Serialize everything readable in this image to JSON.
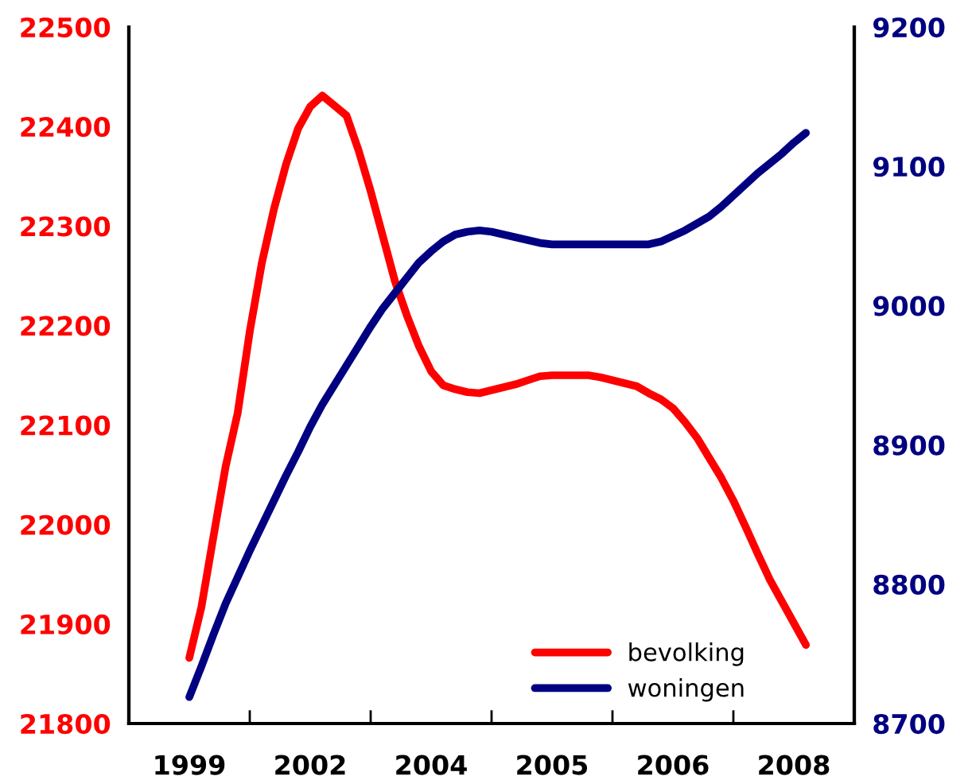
{
  "chart_data": {
    "type": "line",
    "categories": [
      "1999",
      null,
      null,
      null,
      null,
      null,
      null,
      null,
      null,
      null,
      "2002",
      null,
      null,
      null,
      null,
      null,
      null,
      null,
      null,
      null,
      "2004",
      null,
      null,
      null,
      null,
      null,
      null,
      null,
      null,
      null,
      "2005",
      null,
      null,
      null,
      null,
      null,
      null,
      null,
      null,
      null,
      "2006",
      null,
      null,
      null,
      null,
      null,
      null,
      null,
      null,
      null,
      "2008",
      null
    ],
    "ylim": [
      21800,
      22500
    ],
    "yticks": [
      21800,
      21900,
      22000,
      22100,
      22200,
      22300,
      22400,
      22500
    ],
    "y2lim": [
      8700,
      9200
    ],
    "y2ticks": [
      8700,
      8800,
      8900,
      9000,
      9100,
      9200
    ],
    "legend": "bottom right",
    "marker": "none",
    "line_style": "solid",
    "series": [
      {
        "name": "bevolking",
        "color": "#ff0000",
        "values": [
          21866,
          21917,
          21988,
          22058,
          22112,
          22194,
          22263,
          22317,
          22362,
          22398,
          22420,
          22431,
          22421,
          22411,
          22376,
          22335,
          22290,
          22245,
          22210,
          22179,
          22154,
          22140,
          22136,
          22133,
          22132,
          22135,
          22138,
          22141,
          22145,
          22149,
          22150,
          22150,
          22150,
          22150,
          22148,
          22145,
          22142,
          22139,
          22132,
          22126,
          22117,
          22103,
          22087,
          22067,
          22047,
          22024,
          21998,
          21971,
          21945,
          21923,
          21901,
          21879
        ]
      },
      {
        "name": "woningen",
        "color": "#000080",
        "axis": "y2",
        "values": [
          8719,
          8741,
          8764,
          8786,
          8805,
          8824,
          8842,
          8860,
          8878,
          8895,
          8913,
          8929,
          8943,
          8957,
          8971,
          8985,
          8998,
          9009,
          9020,
          9031,
          9039,
          9046,
          9051,
          9053,
          9054,
          9053,
          9051,
          9049,
          9047,
          9045,
          9044,
          9044,
          9044,
          9044,
          9044,
          9044,
          9044,
          9044,
          9044,
          9046,
          9050,
          9054,
          9059,
          9064,
          9071,
          9079,
          9087,
          9095,
          9102,
          9109,
          9117,
          9124
        ]
      }
    ]
  }
}
